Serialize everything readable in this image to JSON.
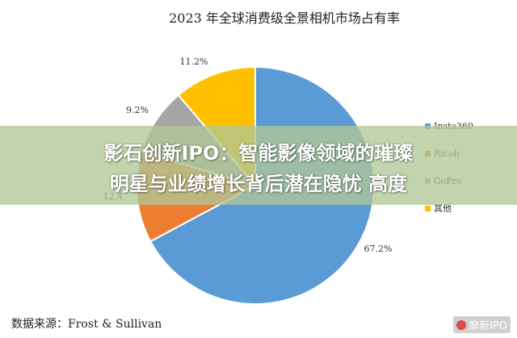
{
  "chart_data": {
    "type": "pie",
    "title": "2023 年全球消费级全景相机市场占有率",
    "categories": [
      "Insta360",
      "Ricoh",
      "GoPro",
      "其他"
    ],
    "values": [
      67.2,
      12.4,
      9.2,
      11.2
    ],
    "value_labels": [
      "67.2%",
      "12.4",
      "9.2%",
      "11.2%"
    ],
    "colors": [
      "#5b9bd5",
      "#ed7d31",
      "#a5a5a5",
      "#ffc000"
    ],
    "legend_position": "right"
  },
  "source_note": "数据来源：Frost & Sullivan",
  "overlay": {
    "headline_line1": "影石创新IPO：智能影像领域的璀璨",
    "headline_line2": "明星与业绩增长背后潜在隐忧 高度"
  },
  "watermark": {
    "text": "摩新IPO",
    "icon": "logo-icon"
  }
}
